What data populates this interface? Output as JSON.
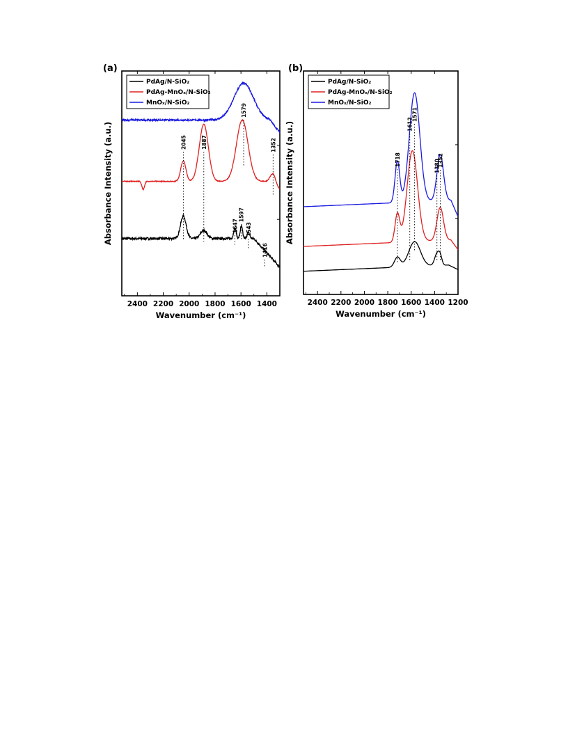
{
  "chart_data": [
    {
      "panel": "(a)",
      "type": "line",
      "xlabel": "Wavenumber (cm⁻¹)",
      "ylabel": "Absorbance Intensity (a.u.)",
      "xlim": [
        2520,
        1300
      ],
      "x_reversed": true,
      "xticks": [
        2400,
        2200,
        2000,
        1800,
        1600,
        1400
      ],
      "legend": [
        "PdAg/N-SiO₂",
        "PdAg-MnOₓ/N-SiO₂",
        "MnOₓ/N-SiO₂"
      ],
      "legend_position": "top-left",
      "series": [
        {
          "name": "PdAg/N-SiO₂",
          "color": "#000000",
          "base": 0.28,
          "noise": 0.006,
          "tail": [
            1500,
            1300,
            -0.14
          ],
          "peaks": [
            [
              2045,
              0.11,
              22
            ],
            [
              1887,
              0.04,
              25
            ],
            [
              1647,
              0.05,
              10
            ],
            [
              1597,
              0.06,
              9
            ],
            [
              1543,
              0.03,
              10
            ]
          ],
          "annotations": [
            "2045",
            "1887",
            "1647",
            "1597",
            "1543",
            "1416"
          ]
        },
        {
          "name": "PdAg-MnOₓ/N-SiO₂",
          "color": "#e02020",
          "base": 0.56,
          "noise": 0.002,
          "tail": [
            1380,
            1300,
            -0.04
          ],
          "dips": [
            [
              2355,
              0.04,
              10
            ]
          ],
          "peaks": [
            [
              2045,
              0.1,
              20
            ],
            [
              1887,
              0.28,
              35
            ],
            [
              1590,
              0.3,
              45
            ],
            [
              1352,
              0.05,
              20
            ]
          ],
          "annotations": [
            "1352"
          ]
        },
        {
          "name": "MnOₓ/N-SiO₂",
          "color": "#1a1ae0",
          "base": 0.86,
          "noise": 0.004,
          "tail": [
            1380,
            1300,
            -0.06
          ],
          "peaks": [
            [
              1579,
              0.18,
              75
            ]
          ],
          "annotations": [
            "1579"
          ]
        }
      ],
      "peak_labels": [
        "2045",
        "1887",
        "1579",
        "1352",
        "1647",
        "1597",
        "1543",
        "1416"
      ]
    },
    {
      "panel": "(b)",
      "type": "line",
      "xlabel": "Wavenumber (cm⁻¹)",
      "ylabel": "Absorbance Intensity (a.u.)",
      "xlim": [
        2520,
        1200
      ],
      "x_reversed": true,
      "xticks": [
        2400,
        2200,
        2000,
        1800,
        1600,
        1400,
        1200
      ],
      "legend": [
        "PdAg/N-SiO₂",
        "PdAg-MnOₓ/N-SiO₂",
        "MnOₓ/N-SiO₂"
      ],
      "legend_position": "top-left",
      "series": [
        {
          "name": "PdAg/N-SiO₂",
          "color": "#000000",
          "base": 0.14,
          "slope": 0.04,
          "tail": [
            1280,
            1200,
            -0.03
          ],
          "peaks": [
            [
              1718,
              0.06,
              25
            ],
            [
              1571,
              0.15,
              50
            ],
            [
              1380,
              0.07,
              20
            ],
            [
              1352,
              0.05,
              15
            ]
          ]
        },
        {
          "name": "PdAg-MnOₓ/N-SiO₂",
          "color": "#e02020",
          "base": 0.29,
          "slope": 0.04,
          "tail": [
            1260,
            1200,
            -0.06
          ],
          "peaks": [
            [
              1718,
              0.17,
              20
            ],
            [
              1590,
              0.55,
              45
            ],
            [
              1352,
              0.2,
              28
            ]
          ]
        },
        {
          "name": "MnOₓ/N-SiO₂",
          "color": "#1a1ae0",
          "base": 0.53,
          "slope": 0.04,
          "tail": [
            1260,
            1200,
            -0.1
          ],
          "peaks": [
            [
              1718,
              0.25,
              20
            ],
            [
              1571,
              0.66,
              45
            ],
            [
              1352,
              0.28,
              28
            ]
          ]
        }
      ],
      "peak_labels": [
        "1718",
        "1612",
        "1571",
        "1380",
        "1352"
      ]
    }
  ]
}
